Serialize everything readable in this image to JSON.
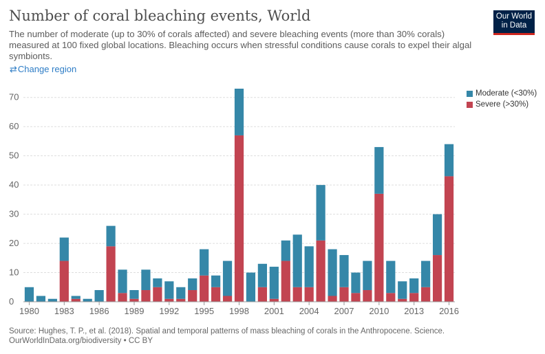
{
  "header": {
    "title": "Number of coral bleaching events, World",
    "subtitle": "The number of moderate (up to 30% of corals affected) and severe bleaching events (more than 30% corals) measured at 100 fixed global locations. Bleaching occurs when stressful conditions cause corals to expel their algal symbionts.",
    "logo_line1": "Our World",
    "logo_line2": "in Data"
  },
  "controls": {
    "change_region_icon": "swap-arrows-icon",
    "change_region_label": "Change region"
  },
  "colors": {
    "moderate": "#3587a8",
    "severe": "#c24451",
    "grid": "#dddddd",
    "axis": "#999999",
    "accent": "#2e7dc6"
  },
  "chart_data": {
    "type": "bar",
    "stacked": true,
    "x": [
      1980,
      1981,
      1982,
      1983,
      1984,
      1985,
      1986,
      1987,
      1988,
      1989,
      1990,
      1991,
      1992,
      1993,
      1994,
      1995,
      1996,
      1997,
      1998,
      1999,
      2000,
      2001,
      2002,
      2003,
      2004,
      2005,
      2006,
      2007,
      2008,
      2009,
      2010,
      2011,
      2012,
      2013,
      2014,
      2015,
      2016
    ],
    "series": [
      {
        "name": "Severe (>30%)",
        "color": "#c24451",
        "values": [
          0,
          0,
          0,
          14,
          1,
          0,
          0,
          19,
          3,
          1,
          4,
          5,
          1,
          1,
          4,
          9,
          5,
          2,
          57,
          0,
          5,
          1,
          14,
          5,
          5,
          21,
          2,
          5,
          3,
          4,
          37,
          3,
          1,
          3,
          5,
          16,
          43
        ]
      },
      {
        "name": "Moderate (<30%)",
        "color": "#3587a8",
        "values": [
          5,
          2,
          1,
          8,
          1,
          1,
          4,
          7,
          8,
          3,
          7,
          3,
          6,
          4,
          4,
          9,
          4,
          12,
          16,
          10,
          8,
          11,
          7,
          18,
          14,
          19,
          16,
          11,
          7,
          10,
          16,
          11,
          6,
          5,
          9,
          14,
          11
        ]
      }
    ],
    "legend_order": [
      "Moderate (<30%)",
      "Severe (>30%)"
    ],
    "legend_position": "top-right",
    "title": "Number of coral bleaching events, World",
    "xlabel": "",
    "ylabel": "",
    "ylim": [
      0,
      73
    ],
    "yticks": [
      0,
      10,
      20,
      30,
      40,
      50,
      60,
      70
    ],
    "xticks": [
      1980,
      1983,
      1986,
      1989,
      1992,
      1995,
      1998,
      2001,
      2004,
      2007,
      2010,
      2013,
      2016
    ],
    "grid": true
  },
  "footer": {
    "source": "Source: Hughes, T. P., et al. (2018). Spatial and temporal patterns of mass bleaching of corals in the Anthropocene. Science.",
    "link": "OurWorldInData.org/biodiversity",
    "license": "• CC BY"
  }
}
